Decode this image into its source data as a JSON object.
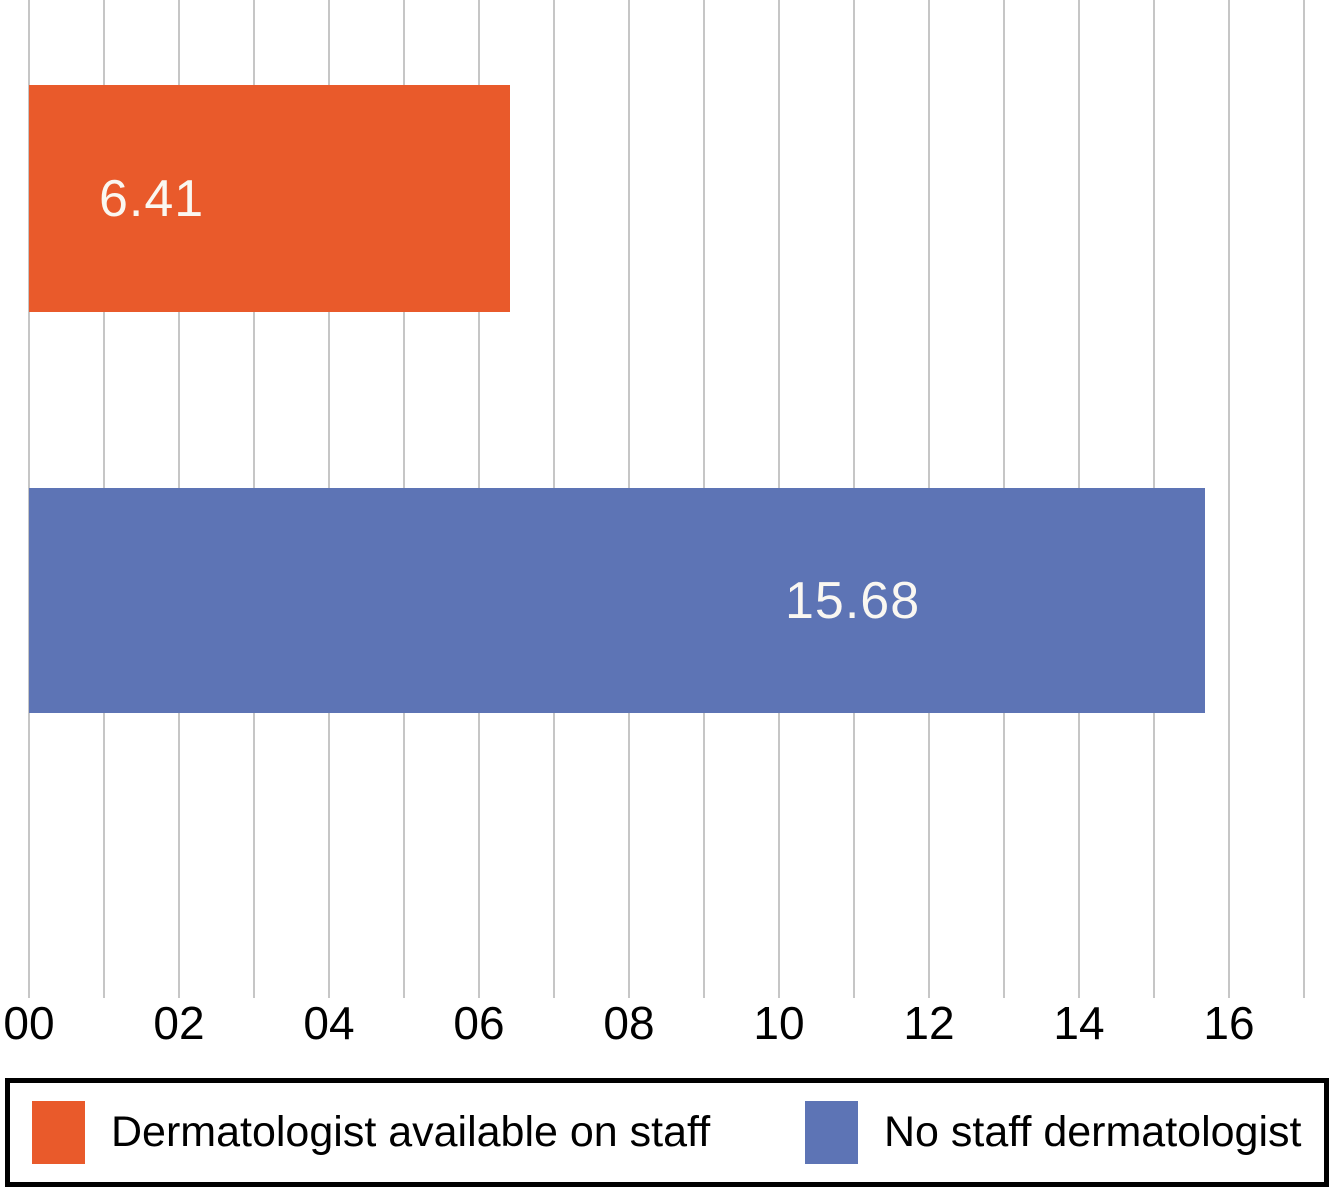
{
  "chart_data": {
    "type": "bar",
    "orientation": "horizontal",
    "title": "",
    "xlabel": "",
    "ylabel": "",
    "categories": [
      "Dermatologist available on staff",
      "No staff dermatologist"
    ],
    "values": [
      6.41,
      15.68
    ],
    "bar_labels": [
      "6.41",
      "15.68"
    ],
    "bar_colors": [
      "#e95a2b",
      "#5d74b5"
    ],
    "xlim": [
      0,
      17
    ],
    "gridline_step": 1,
    "grid": true,
    "x_ticks": [
      {
        "label": "00",
        "value": 0
      },
      {
        "label": "02",
        "value": 2
      },
      {
        "label": "04",
        "value": 4
      },
      {
        "label": "06",
        "value": 6
      },
      {
        "label": "08",
        "value": 8
      },
      {
        "label": "10",
        "value": 10
      },
      {
        "label": "12",
        "value": 12
      },
      {
        "label": "14",
        "value": 14
      },
      {
        "label": "16",
        "value": 16
      }
    ],
    "legend_position": "bottom",
    "legend": [
      {
        "label": "Dermatologist available on staff",
        "color": "#e95a2b"
      },
      {
        "label": "No staff dermatologist",
        "color": "#5d74b5"
      }
    ]
  },
  "palette": {
    "background": "#ffffff",
    "gridline": "#c6c6c6",
    "axis_label": "#000000",
    "bar_value_text": "#faf7f1",
    "legend_border": "#000000",
    "legend_text": "#000000"
  }
}
